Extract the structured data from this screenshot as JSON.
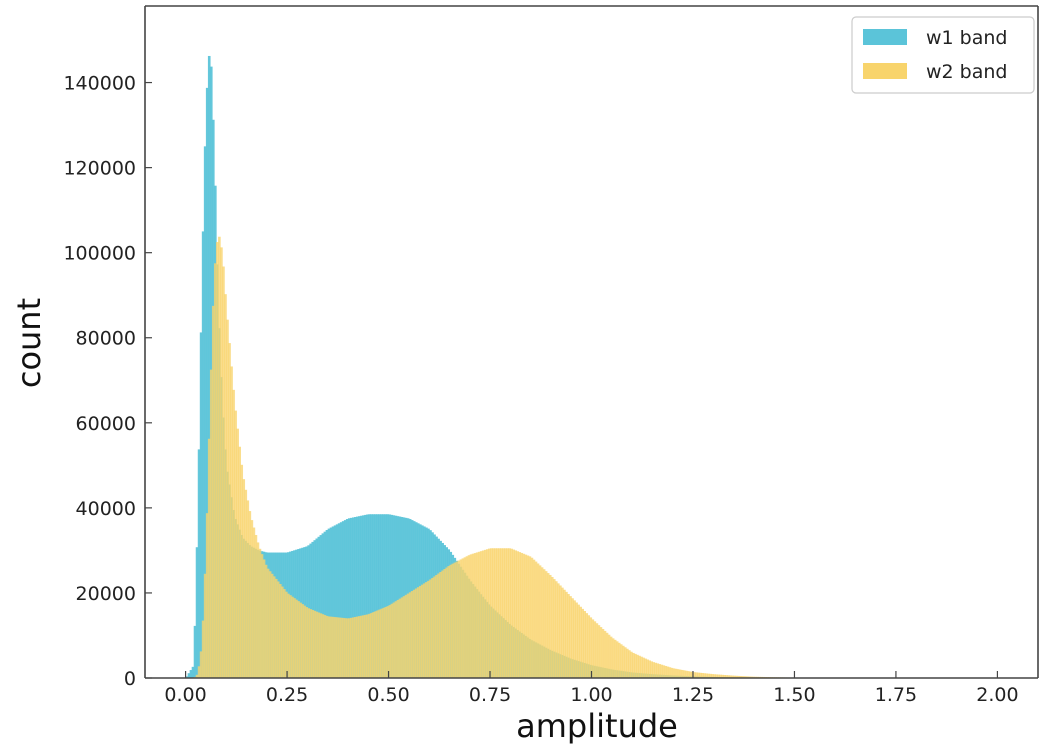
{
  "chart_data": {
    "type": "bar",
    "subtype": "overlaid-histogram",
    "title": "",
    "xlabel": "amplitude",
    "ylabel": "count",
    "xlim": [
      -0.1,
      2.1
    ],
    "ylim": [
      0,
      158000
    ],
    "xticks": [
      0.0,
      0.25,
      0.5,
      0.75,
      1.0,
      1.25,
      1.5,
      1.75,
      2.0
    ],
    "xtick_labels": [
      "0.00",
      "0.25",
      "0.50",
      "0.75",
      "1.00",
      "1.25",
      "1.50",
      "1.75",
      "2.00"
    ],
    "yticks": [
      0,
      20000,
      40000,
      60000,
      80000,
      100000,
      120000,
      140000
    ],
    "ytick_labels": [
      "0",
      "20000",
      "40000",
      "60000",
      "80000",
      "100000",
      "120000",
      "140000"
    ],
    "grid": false,
    "legend_position": "top-right",
    "x": [
      0.0,
      0.02,
      0.03,
      0.04,
      0.05,
      0.06,
      0.07,
      0.08,
      0.09,
      0.1,
      0.12,
      0.14,
      0.16,
      0.18,
      0.2,
      0.25,
      0.3,
      0.35,
      0.4,
      0.45,
      0.5,
      0.55,
      0.6,
      0.65,
      0.7,
      0.75,
      0.8,
      0.85,
      0.9,
      0.95,
      1.0,
      1.05,
      1.1,
      1.15,
      1.2,
      1.25,
      1.3,
      1.35,
      1.4,
      1.45,
      1.5,
      1.6,
      1.7,
      1.8,
      1.9,
      2.0
    ],
    "series": [
      {
        "name": "w1 band",
        "color": "#5bc4d9",
        "values": [
          0,
          3000,
          40000,
          95000,
          135000,
          150000,
          125000,
          88000,
          65000,
          50000,
          38000,
          33000,
          31000,
          30000,
          29500,
          29500,
          31000,
          35000,
          37500,
          38500,
          38500,
          37500,
          35000,
          30000,
          23000,
          17000,
          12500,
          9000,
          6500,
          4500,
          3000,
          2000,
          1300,
          900,
          600,
          400,
          250,
          150,
          100,
          60,
          40,
          20,
          10,
          5,
          2,
          0
        ]
      },
      {
        "name": "w2 band",
        "color": "#f8d46c",
        "values": [
          0,
          0,
          1000,
          8000,
          30000,
          65000,
          95000,
          105000,
          100000,
          87000,
          65000,
          48000,
          38000,
          31000,
          26000,
          20000,
          16500,
          14500,
          14000,
          15000,
          17000,
          20000,
          23000,
          26500,
          29000,
          30500,
          30500,
          28500,
          24000,
          19000,
          14000,
          9500,
          6000,
          3800,
          2300,
          1400,
          900,
          550,
          300,
          180,
          100,
          50,
          25,
          10,
          5,
          0
        ]
      }
    ]
  }
}
